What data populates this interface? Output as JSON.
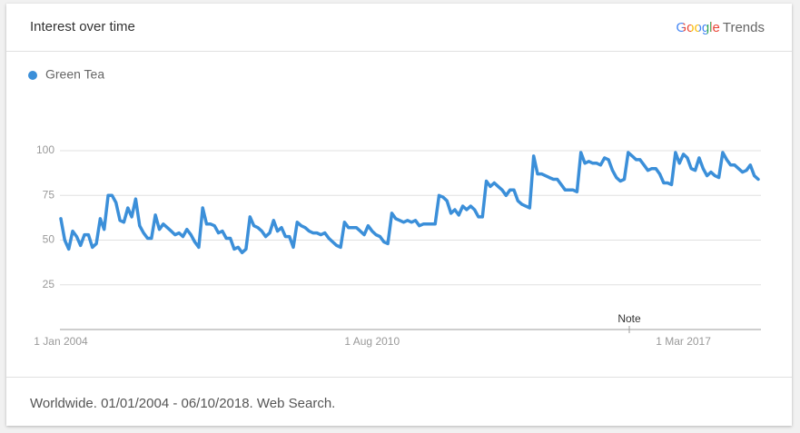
{
  "header": {
    "title": "Interest over time",
    "logo": {
      "google": "Google",
      "trends": "Trends"
    }
  },
  "chart_data": {
    "type": "line",
    "series": [
      {
        "name": "Green Tea",
        "color": "#3b8fd9",
        "values": [
          62,
          50,
          45,
          55,
          52,
          47,
          53,
          53,
          46,
          48,
          62,
          56,
          75,
          75,
          71,
          61,
          60,
          68,
          63,
          73,
          58,
          54,
          51,
          51,
          64,
          56,
          59,
          57,
          55,
          53,
          54,
          52,
          56,
          53,
          49,
          46,
          68,
          59,
          59,
          58,
          54,
          55,
          51,
          51,
          45,
          46,
          43,
          45,
          63,
          58,
          57,
          55,
          52,
          54,
          61,
          55,
          57,
          52,
          52,
          46,
          60,
          58,
          57,
          55,
          54,
          54,
          53,
          54,
          51,
          49,
          47,
          46,
          60,
          57,
          57,
          57,
          55,
          53,
          58,
          55,
          53,
          52,
          49,
          48,
          65,
          62,
          61,
          60,
          61,
          60,
          61,
          58,
          59,
          59,
          59,
          59,
          75,
          74,
          72,
          65,
          67,
          64,
          69,
          67,
          69,
          67,
          63,
          63,
          83,
          80,
          82,
          80,
          78,
          75,
          78,
          78,
          72,
          70,
          69,
          68,
          97,
          87,
          87,
          86,
          85,
          84,
          84,
          81,
          78,
          78,
          78,
          77,
          99,
          93,
          94,
          93,
          93,
          92,
          96,
          95,
          89,
          85,
          83,
          84,
          99,
          97,
          95,
          95,
          92,
          89,
          90,
          90,
          87,
          82,
          82,
          81,
          99,
          93,
          98,
          96,
          90,
          89,
          96,
          90,
          86,
          88,
          86,
          85,
          99,
          95,
          92,
          92,
          90,
          88,
          89,
          92,
          86,
          84
        ]
      }
    ],
    "categories": [
      "1 Jan 2004",
      null,
      null,
      null,
      null,
      null,
      null,
      null,
      null,
      null,
      null,
      null,
      null,
      null,
      null,
      null,
      null,
      null,
      null,
      null,
      null,
      null,
      null,
      null,
      null,
      null,
      null,
      null,
      null,
      null,
      null,
      null,
      null,
      null,
      null,
      null,
      null,
      null,
      null,
      null,
      null,
      null,
      null,
      null,
      null,
      null,
      null,
      null,
      null,
      null,
      null,
      null,
      null,
      null,
      null,
      null,
      null,
      null,
      null,
      null,
      null,
      null,
      null,
      null,
      null,
      null,
      null,
      null,
      null,
      null,
      null,
      null,
      null,
      null,
      null,
      null,
      null,
      null,
      null,
      "1 Aug 2010",
      null,
      null,
      null,
      null,
      null,
      null,
      null,
      null,
      null,
      null,
      null,
      null,
      null,
      null,
      null,
      null,
      null,
      null,
      null,
      null,
      null,
      null,
      null,
      null,
      null,
      null,
      null,
      null,
      null,
      null,
      null,
      null,
      null,
      null,
      null,
      null,
      null,
      null,
      null,
      null,
      null,
      null,
      null,
      null,
      null,
      null,
      null,
      null,
      null,
      null,
      null,
      null,
      null,
      null,
      null,
      null,
      null,
      null,
      null,
      null,
      null,
      null,
      null,
      null,
      null,
      null,
      null,
      null,
      null,
      null,
      null,
      null,
      null,
      null,
      null,
      null,
      null,
      null,
      "1 Mar 2017",
      null,
      null,
      null,
      null,
      null,
      null,
      null,
      null,
      null,
      null,
      null,
      null,
      null,
      null,
      null,
      null,
      null,
      null,
      null
    ],
    "ylim": [
      0,
      100
    ],
    "yticks": [
      25,
      50,
      75,
      100
    ],
    "grid": true,
    "legend": "top-left",
    "annotation": "Note"
  },
  "footer": {
    "text": "Worldwide. 01/01/2004 - 06/10/2018. Web Search."
  }
}
